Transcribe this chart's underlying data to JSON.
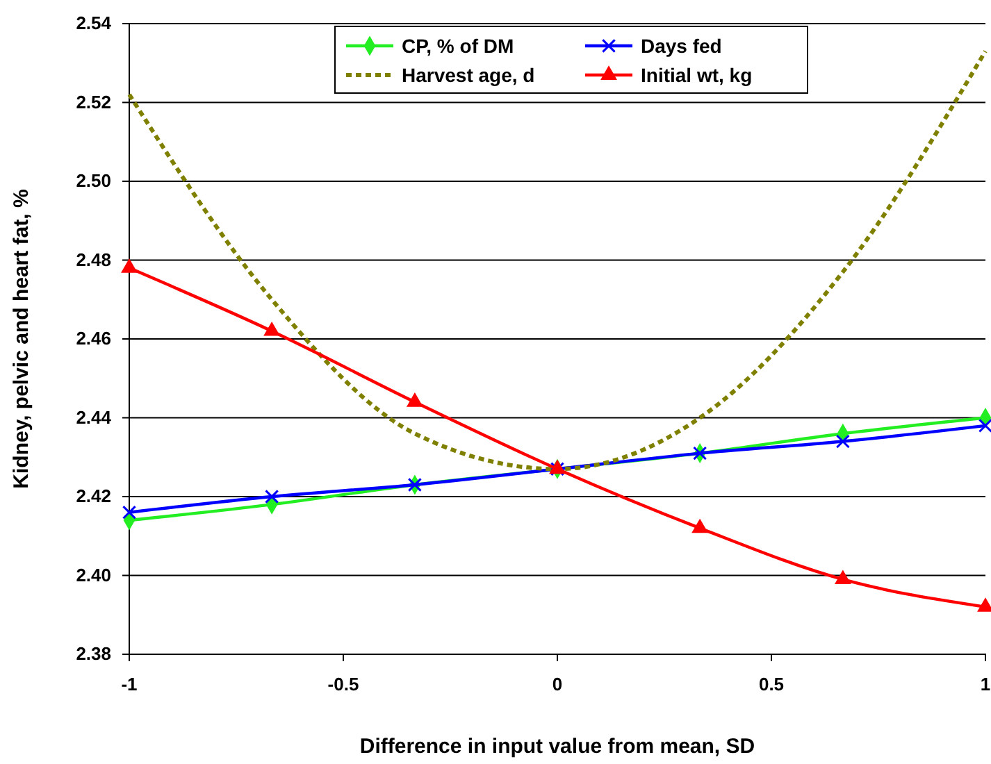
{
  "chart_data": {
    "type": "line",
    "xlabel": "Difference in input value from mean, SD",
    "ylabel": "Kidney, pelvic and heart fat, %",
    "x": [
      -1,
      -0.667,
      -0.333,
      0,
      0.333,
      0.667,
      1
    ],
    "series": [
      {
        "name": "CP, % of DM",
        "color": "#22ee22",
        "marker": "diamond",
        "values": [
          2.414,
          2.418,
          2.423,
          2.427,
          2.431,
          2.436,
          2.44
        ]
      },
      {
        "name": "Days fed",
        "color": "#0000ff",
        "marker": "cross",
        "values": [
          2.416,
          2.42,
          2.423,
          2.427,
          2.431,
          2.434,
          2.438
        ]
      },
      {
        "name": "Harvest age, d",
        "color": "#808000",
        "marker": "none",
        "line_style": "dotted",
        "values": [
          2.522,
          2.47,
          2.436,
          2.427,
          2.44,
          2.477,
          2.533
        ]
      },
      {
        "name": "Initial wt, kg",
        "color": "#ff0000",
        "marker": "triangle",
        "values": [
          2.478,
          2.462,
          2.444,
          2.427,
          2.412,
          2.399,
          2.392
        ]
      }
    ],
    "xlim": [
      -1,
      1
    ],
    "xticks": [
      -1,
      -0.5,
      0,
      0.5,
      1
    ],
    "ylim": [
      2.38,
      2.54
    ],
    "yticks": [
      2.38,
      {
        "value": 2.4,
        "label": "2.40"
      },
      2.42,
      2.44,
      2.46,
      2.48,
      {
        "value": 2.5,
        "label": "2.50"
      },
      2.52,
      2.54
    ],
    "grid": "y",
    "legend": "top"
  }
}
